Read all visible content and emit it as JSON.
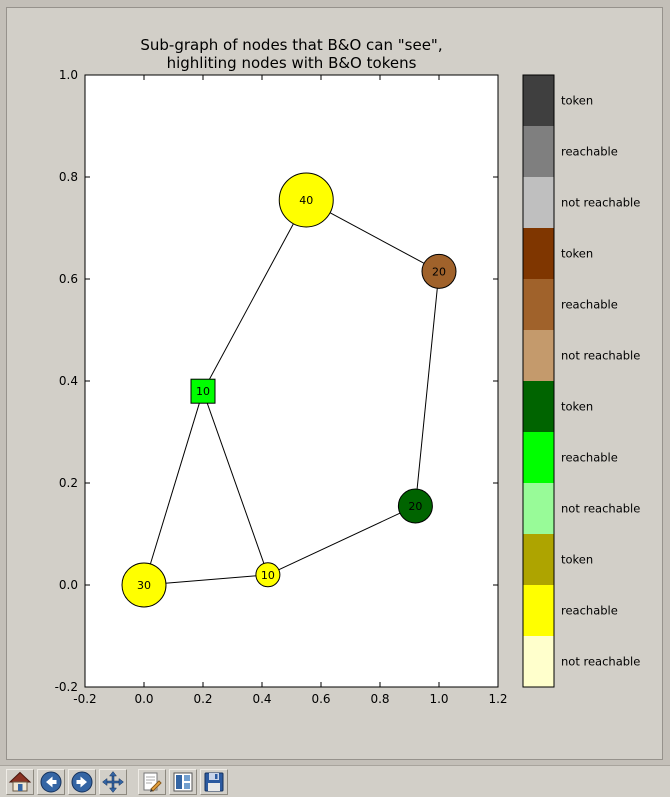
{
  "figure": {
    "title_lines": [
      "Sub-graph of nodes that B&O can \"see\",",
      "highliting nodes with B&O tokens"
    ]
  },
  "chart_data": {
    "type": "scatter",
    "title": "Sub-graph of nodes that B&O can \"see\",\nhighliting nodes with B&O tokens",
    "xlabel": "",
    "ylabel": "",
    "xlim": [
      -0.2,
      1.2
    ],
    "ylim": [
      -0.2,
      1.0
    ],
    "grid": false,
    "x_ticks": [
      "-0.2",
      "0.0",
      "0.2",
      "0.4",
      "0.6",
      "0.8",
      "1.0",
      "1.2"
    ],
    "y_ticks": [
      "-0.2",
      "0.0",
      "0.2",
      "0.4",
      "0.6",
      "0.8",
      "1.0"
    ],
    "nodes": [
      {
        "label": "40",
        "x": 0.55,
        "y": 0.755,
        "shape": "circle",
        "color": "#ffff00",
        "r": 27
      },
      {
        "label": "20",
        "x": 1.0,
        "y": 0.615,
        "shape": "circle",
        "color": "#a0622b",
        "r": 17
      },
      {
        "label": "10",
        "x": 0.2,
        "y": 0.38,
        "shape": "square",
        "color": "#00ff00",
        "r": 12
      },
      {
        "label": "20",
        "x": 0.92,
        "y": 0.155,
        "shape": "circle",
        "color": "#006400",
        "r": 17
      },
      {
        "label": "30",
        "x": 0.0,
        "y": 0.0,
        "shape": "circle",
        "color": "#ffff00",
        "r": 22
      },
      {
        "label": "10",
        "x": 0.42,
        "y": 0.02,
        "shape": "circle",
        "color": "#ffff00",
        "r": 12
      }
    ],
    "edges": [
      [
        0,
        1
      ],
      [
        0,
        2
      ],
      [
        1,
        3
      ],
      [
        2,
        4
      ],
      [
        2,
        5
      ],
      [
        4,
        5
      ],
      [
        5,
        3
      ]
    ],
    "legend_position": "right",
    "legend": [
      {
        "label": "token",
        "color": "#3f3f3f"
      },
      {
        "label": "reachable",
        "color": "#7f7f7f"
      },
      {
        "label": "not reachable",
        "color": "#bfbfbf"
      },
      {
        "label": "token",
        "color": "#7f3600"
      },
      {
        "label": "reachable",
        "color": "#a0622b"
      },
      {
        "label": "not reachable",
        "color": "#c49a6c"
      },
      {
        "label": "token",
        "color": "#006400"
      },
      {
        "label": "reachable",
        "color": "#00ff00"
      },
      {
        "label": "not reachable",
        "color": "#98fb98"
      },
      {
        "label": "token",
        "color": "#aea400"
      },
      {
        "label": "reachable",
        "color": "#ffff00"
      },
      {
        "label": "not reachable",
        "color": "#ffffcc"
      }
    ]
  },
  "toolbar": {
    "buttons": [
      {
        "name": "home",
        "icon": "home-icon"
      },
      {
        "name": "back",
        "icon": "arrow-left-circle-icon"
      },
      {
        "name": "forward",
        "icon": "arrow-right-circle-icon"
      },
      {
        "name": "pan",
        "icon": "move-arrows-icon"
      },
      {
        "name": "edit",
        "icon": "pencil-paper-icon"
      },
      {
        "name": "subplots",
        "icon": "subplots-window-icon"
      },
      {
        "name": "save",
        "icon": "floppy-disk-icon"
      }
    ]
  }
}
